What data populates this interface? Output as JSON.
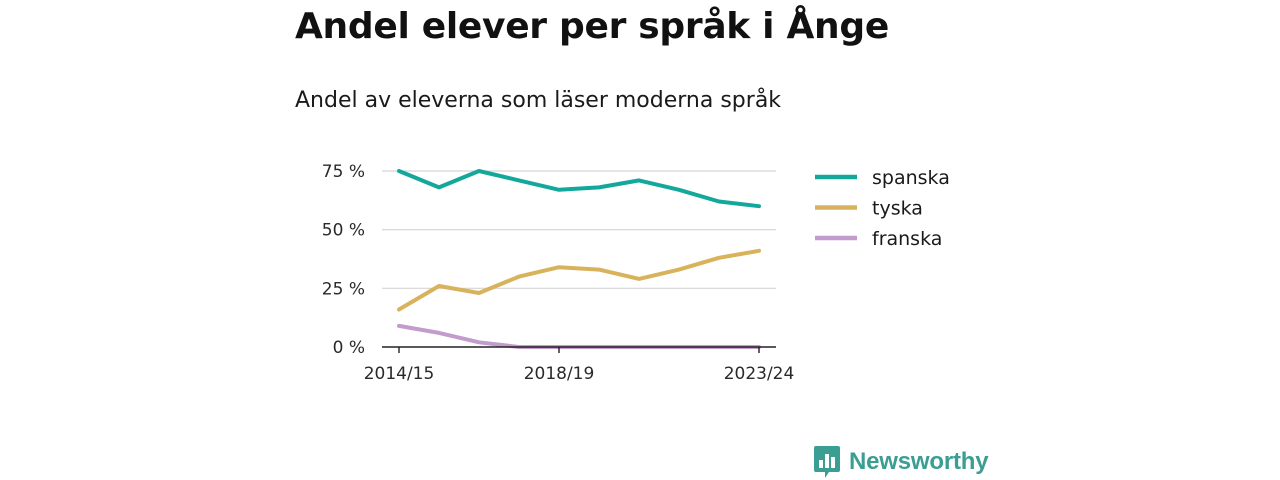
{
  "title": "Andel elever per språk i Ånge",
  "subtitle": "Andel av eleverna som läser moderna språk",
  "brand": {
    "name": "Newsworthy"
  },
  "colors": {
    "spanska": "#13a89b",
    "tyska": "#d9b25c",
    "franska": "#c39bcd",
    "grid": "#d5d5d5",
    "axis": "#222222"
  },
  "chart_data": {
    "type": "line",
    "title": "Andel elever per språk i Ånge",
    "subtitle": "Andel av eleverna som läser moderna språk",
    "x": [
      "2014/15",
      "2015/16",
      "2016/17",
      "2017/18",
      "2018/19",
      "2019/20",
      "2020/21",
      "2021/22",
      "2022/23",
      "2023/24"
    ],
    "x_tick_labels": [
      "2014/15",
      "2018/19",
      "2023/24"
    ],
    "y_ticks": [
      0,
      25,
      50,
      75
    ],
    "y_tick_labels": [
      "0 %",
      "25 %",
      "50 %",
      "75 %"
    ],
    "ylim": [
      0,
      75
    ],
    "grid": true,
    "legend_position": "right",
    "series": [
      {
        "name": "spanska",
        "values": [
          75,
          68,
          75,
          71,
          67,
          68,
          71,
          67,
          62,
          60
        ]
      },
      {
        "name": "tyska",
        "values": [
          16,
          26,
          23,
          30,
          34,
          33,
          29,
          33,
          38,
          41
        ]
      },
      {
        "name": "franska",
        "values": [
          9,
          6,
          2,
          0,
          0,
          0,
          0,
          0,
          0,
          0
        ]
      }
    ]
  }
}
